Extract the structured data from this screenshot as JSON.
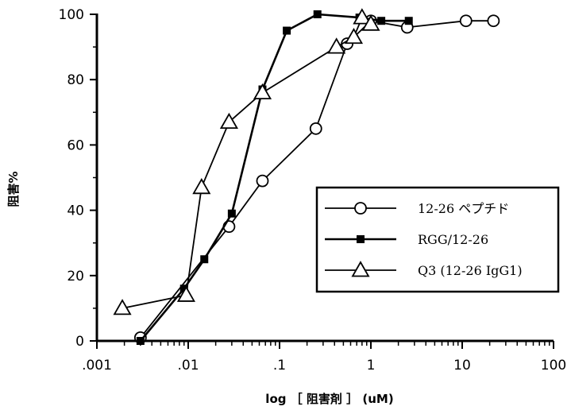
{
  "chart_data": {
    "type": "line",
    "title": "",
    "xlabel": "log ［ 阻害剤 ］ (uM)",
    "ylabel": "阻害%",
    "xscale": "log",
    "xlim": [
      0.001,
      100
    ],
    "ylim": [
      0,
      100
    ],
    "x_ticks": [
      {
        "value": 0.001,
        "label": ".001"
      },
      {
        "value": 0.01,
        "label": ".01"
      },
      {
        "value": 0.1,
        "label": ".1"
      },
      {
        "value": 1,
        "label": "1"
      },
      {
        "value": 10,
        "label": "10"
      },
      {
        "value": 100,
        "label": "100"
      }
    ],
    "y_ticks": [
      {
        "value": 0,
        "label": "0"
      },
      {
        "value": 20,
        "label": "20"
      },
      {
        "value": 40,
        "label": "40"
      },
      {
        "value": 60,
        "label": "60"
      },
      {
        "value": 80,
        "label": "80"
      },
      {
        "value": 100,
        "label": "100"
      }
    ],
    "grid": false,
    "legend_position": "center-right",
    "series": [
      {
        "name": "12-26 ペプチド",
        "marker": "circle-open",
        "points": [
          {
            "x": 0.003,
            "y": 1
          },
          {
            "x": 0.028,
            "y": 35
          },
          {
            "x": 0.065,
            "y": 49
          },
          {
            "x": 0.25,
            "y": 65
          },
          {
            "x": 0.55,
            "y": 91
          },
          {
            "x": 1.0,
            "y": 98
          },
          {
            "x": 2.5,
            "y": 96
          },
          {
            "x": 11,
            "y": 98
          },
          {
            "x": 22,
            "y": 98
          }
        ]
      },
      {
        "name": "RGG/12-26",
        "marker": "square-filled",
        "points": [
          {
            "x": 0.003,
            "y": 0
          },
          {
            "x": 0.009,
            "y": 16
          },
          {
            "x": 0.015,
            "y": 25
          },
          {
            "x": 0.03,
            "y": 39
          },
          {
            "x": 0.065,
            "y": 77
          },
          {
            "x": 0.12,
            "y": 95
          },
          {
            "x": 0.26,
            "y": 100
          },
          {
            "x": 0.75,
            "y": 99
          },
          {
            "x": 1.3,
            "y": 98
          },
          {
            "x": 2.6,
            "y": 98
          }
        ]
      },
      {
        "name": "Q3 (12-26 IgG1)",
        "marker": "triangle-open",
        "points": [
          {
            "x": 0.0019,
            "y": 10
          },
          {
            "x": 0.0095,
            "y": 14
          },
          {
            "x": 0.014,
            "y": 47
          },
          {
            "x": 0.028,
            "y": 67
          },
          {
            "x": 0.065,
            "y": 76
          },
          {
            "x": 0.42,
            "y": 90
          },
          {
            "x": 0.65,
            "y": 93
          },
          {
            "x": 0.8,
            "y": 99
          },
          {
            "x": 1.0,
            "y": 97
          }
        ]
      }
    ]
  }
}
